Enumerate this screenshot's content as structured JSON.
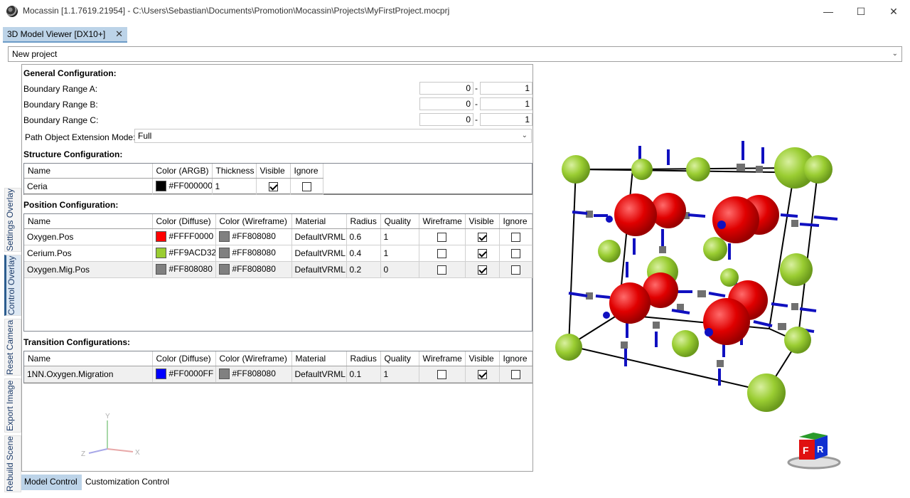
{
  "window": {
    "title": "Mocassin [1.1.7619.21954] - C:\\Users\\Sebastian\\Documents\\Promotion\\Mocassin\\Projects\\MyFirstProject.mocprj",
    "minimize": "—",
    "maximize": "☐",
    "close": "✕"
  },
  "doc_tab": {
    "label": "3D Model Viewer [DX10+]",
    "close": "✕"
  },
  "project_select": {
    "value": "New project",
    "chevron": "⌄"
  },
  "side_tabs": [
    "Settings Overlay",
    "Control Overlay",
    "Reset Camera",
    "Export Image",
    "Rebuild Scene"
  ],
  "general": {
    "title": "General Configuration:",
    "ranges": [
      {
        "label": "Boundary Range A:",
        "from": "0",
        "to": "1"
      },
      {
        "label": "Boundary Range B:",
        "from": "0",
        "to": "1"
      },
      {
        "label": "Boundary Range C:",
        "from": "0",
        "to": "1"
      }
    ],
    "dash": "-",
    "path_mode_label": "Path Object Extension Mode:",
    "path_mode_value": "Full"
  },
  "structure": {
    "title": "Structure Configuration:",
    "headers": [
      "Name",
      "Color (ARGB)",
      "Thickness",
      "Visible",
      "Ignore"
    ],
    "rows": [
      {
        "name": "Ceria",
        "color": "#FF000000",
        "swatch": "#000000",
        "thickness": "1",
        "visible": true,
        "ignore": false
      }
    ]
  },
  "position": {
    "title": "Position Configuration:",
    "headers": [
      "Name",
      "Color (Diffuse)",
      "Color (Wireframe)",
      "Material",
      "Radius",
      "Quality",
      "Wireframe",
      "Visible",
      "Ignore"
    ],
    "rows": [
      {
        "name": "Oxygen.Pos",
        "diffuse": "#FFFF0000",
        "diffuse_swatch": "#ff0000",
        "wire": "#FF808080",
        "wire_swatch": "#808080",
        "material": "DefaultVRML",
        "radius": "0.6",
        "quality": "1",
        "wireframe": false,
        "visible": true,
        "ignore": false
      },
      {
        "name": "Cerium.Pos",
        "diffuse": "#FF9ACD32",
        "diffuse_swatch": "#9acd32",
        "wire": "#FF808080",
        "wire_swatch": "#808080",
        "material": "DefaultVRML",
        "radius": "0.4",
        "quality": "1",
        "wireframe": false,
        "visible": true,
        "ignore": false
      },
      {
        "name": "Oxygen.Mig.Pos",
        "diffuse": "#FF808080",
        "diffuse_swatch": "#808080",
        "wire": "#FF808080",
        "wire_swatch": "#808080",
        "material": "DefaultVRML",
        "radius": "0.2",
        "quality": "0",
        "wireframe": false,
        "visible": true,
        "ignore": false
      }
    ]
  },
  "transition": {
    "title": "Transition Configurations:",
    "headers": [
      "Name",
      "Color (Diffuse)",
      "Color (Wireframe)",
      "Material",
      "Radius",
      "Quality",
      "Wireframe",
      "Visible",
      "Ignore"
    ],
    "rows": [
      {
        "name": "1NN.Oxygen.Migration",
        "diffuse": "#FF0000FF",
        "diffuse_swatch": "#0000ff",
        "wire": "#FF808080",
        "wire_swatch": "#808080",
        "material": "DefaultVRML",
        "radius": "0.1",
        "quality": "1",
        "wireframe": false,
        "visible": true,
        "ignore": false
      }
    ]
  },
  "bottom_tabs": [
    "Model Control",
    "Customization Control"
  ],
  "axes": {
    "x": "X",
    "y": "Y",
    "z": "Z"
  },
  "view_cube": {
    "front": "F",
    "right": "R"
  },
  "colors": {
    "accent": "#2c5d8f",
    "oxygen": "#ff0000",
    "cerium": "#9acd32",
    "migration": "#808080",
    "transition": "#0000ff"
  }
}
